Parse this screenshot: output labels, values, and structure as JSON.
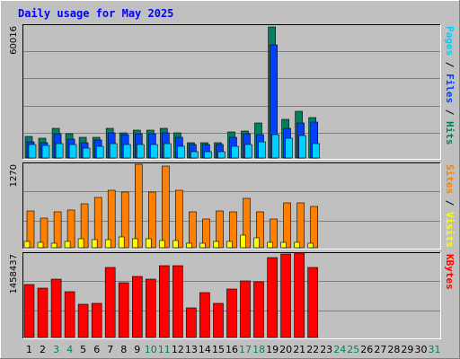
{
  "chart_data": {
    "type": "bar",
    "title": "Daily usage for May 2025",
    "categories": [
      "1",
      "2",
      "3",
      "4",
      "5",
      "6",
      "7",
      "8",
      "9",
      "10",
      "11",
      "12",
      "13",
      "14",
      "15",
      "16",
      "17",
      "18",
      "19",
      "20",
      "21",
      "22",
      "23",
      "24",
      "25",
      "26",
      "27",
      "28",
      "29",
      "30",
      "31"
    ],
    "weekend_days": [
      "3",
      "4",
      "10",
      "11",
      "17",
      "18",
      "24",
      "25",
      "31"
    ],
    "panels": [
      {
        "id": "hits-panel",
        "max_label": "60016",
        "ylim": [
          0,
          60016
        ],
        "right_label_parts": [
          {
            "text": "Pages",
            "color": "#00d0ff"
          },
          {
            "text": " / ",
            "color": "#000000"
          },
          {
            "text": "Files",
            "color": "#0040ff"
          },
          {
            "text": " / ",
            "color": "#000000"
          },
          {
            "text": "Hits",
            "color": "#008060"
          }
        ],
        "series": [
          {
            "name": "Hits",
            "color": "#008060",
            "values": [
              10000,
              9000,
              13500,
              11000,
              9500,
              9500,
              13500,
              11500,
              12800,
              12500,
              13500,
              11300,
              7000,
              7000,
              7000,
              12000,
              12300,
              16000,
              59500,
              17500,
              21300,
              18500,
              0,
              0,
              0,
              0,
              0,
              0,
              0,
              0,
              0
            ]
          },
          {
            "name": "Files",
            "color": "#0040ff",
            "values": [
              7500,
              7000,
              11000,
              8500,
              6800,
              8000,
              11500,
              10500,
              11000,
              11000,
              11500,
              9500,
              6000,
              6000,
              6000,
              9500,
              11000,
              10500,
              51500,
              13500,
              16000,
              16500,
              0,
              0,
              0,
              0,
              0,
              0,
              0,
              0,
              0
            ]
          },
          {
            "name": "Pages",
            "color": "#00d0ff",
            "values": [
              6000,
              5800,
              6500,
              6000,
              4500,
              5500,
              6500,
              6000,
              6200,
              6000,
              6500,
              5200,
              3000,
              3000,
              3000,
              5500,
              6000,
              7500,
              10500,
              9000,
              10200,
              6400,
              0,
              0,
              0,
              0,
              0,
              0,
              0,
              0,
              0
            ]
          }
        ]
      },
      {
        "id": "visits-panel",
        "max_label": "1270",
        "ylim": [
          0,
          1270
        ],
        "right_label_parts": [
          {
            "text": "Sites",
            "color": "#ff8000"
          },
          {
            "text": " / ",
            "color": "#000000"
          },
          {
            "text": "Visits",
            "color": "#ffff00"
          }
        ],
        "series": [
          {
            "name": "Sites",
            "color": "#ff8000",
            "values": [
              560,
              450,
              545,
              575,
              675,
              760,
              870,
              850,
              1265,
              845,
              1240,
              870,
              540,
              435,
              560,
              545,
              745,
              545,
              435,
              680,
              680,
              630,
              0,
              0,
              0,
              0,
              0,
              0,
              0,
              0,
              0
            ]
          },
          {
            "name": "Visits",
            "color": "#ffff00",
            "values": [
              100,
              80,
              75,
              100,
              130,
              125,
              125,
              165,
              130,
              135,
              110,
              105,
              65,
              70,
              90,
              90,
              190,
              145,
              85,
              80,
              85,
              75,
              0,
              0,
              0,
              0,
              0,
              0,
              0,
              0,
              0
            ]
          }
        ]
      },
      {
        "id": "kbytes-panel",
        "max_label": "1458437",
        "ylim": [
          0,
          1458437
        ],
        "right_label_parts": [
          {
            "text": "KBytes",
            "color": "#ff0000"
          }
        ],
        "series": [
          {
            "name": "KBytes",
            "color": "#ff0000",
            "values": [
              930000,
              860000,
              1020000,
              800000,
              580000,
              600000,
              1230000,
              950000,
              1070000,
              1020000,
              1250000,
              1250000,
              520000,
              790000,
              590000,
              840000,
              990000,
              980000,
              1400000,
              1460000,
              1470000,
              1230000,
              0,
              0,
              0,
              0,
              0,
              0,
              0,
              0,
              0
            ]
          }
        ]
      }
    ]
  }
}
